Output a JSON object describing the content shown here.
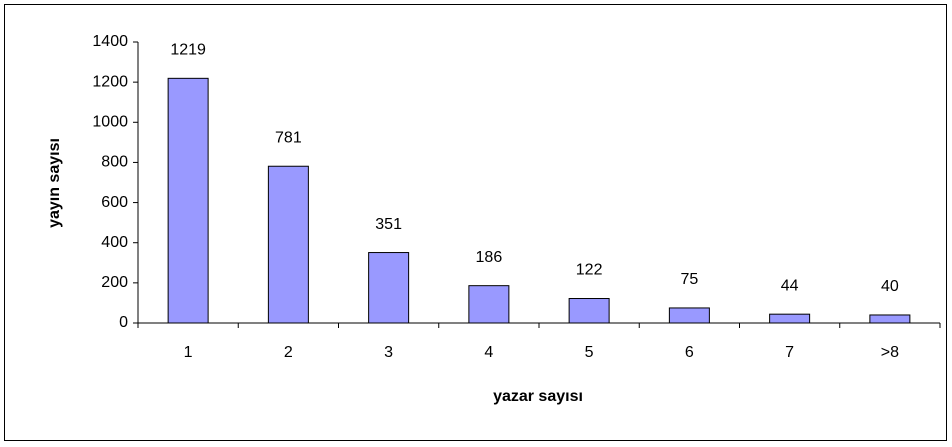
{
  "chart_data": {
    "type": "bar",
    "x_label": "yazar sayısı",
    "y_label": "yayın sayısı",
    "categories": [
      "1",
      "2",
      "3",
      "4",
      "5",
      "6",
      "7",
      ">8"
    ],
    "values": [
      1219,
      781,
      351,
      186,
      122,
      75,
      44,
      40
    ],
    "color": "#9999ff",
    "ylim": [
      0,
      1400
    ],
    "yticks": [
      0,
      200,
      400,
      600,
      800,
      1000,
      1200,
      1400
    ],
    "grid": false
  }
}
